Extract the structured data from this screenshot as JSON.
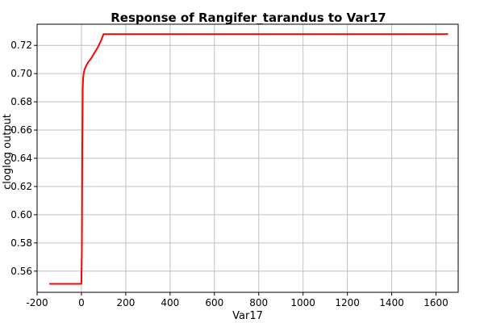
{
  "chart_data": {
    "type": "line",
    "title": "Response of Rangifer_tarandus to Var17",
    "xlabel": "Var17",
    "ylabel": "cloglog output",
    "xlim": [
      -200,
      1700
    ],
    "ylim": [
      0.545,
      0.735
    ],
    "xticks": [
      -200,
      0,
      200,
      400,
      600,
      800,
      1000,
      1200,
      1400,
      1600
    ],
    "yticks": [
      0.56,
      0.58,
      0.6,
      0.62,
      0.64,
      0.66,
      0.68,
      0.7,
      0.72
    ],
    "grid": true,
    "series": [
      {
        "color": "#ff0000",
        "x": [
          -145,
          -40,
          0,
          2,
          4,
          6,
          8,
          10,
          14,
          20,
          30,
          45,
          60,
          75,
          90,
          100,
          105,
          1655
        ],
        "y": [
          0.551,
          0.551,
          0.551,
          0.575,
          0.645,
          0.69,
          0.697,
          0.7,
          0.703,
          0.705,
          0.708,
          0.711,
          0.715,
          0.719,
          0.724,
          0.728,
          0.728,
          0.728
        ]
      }
    ]
  }
}
